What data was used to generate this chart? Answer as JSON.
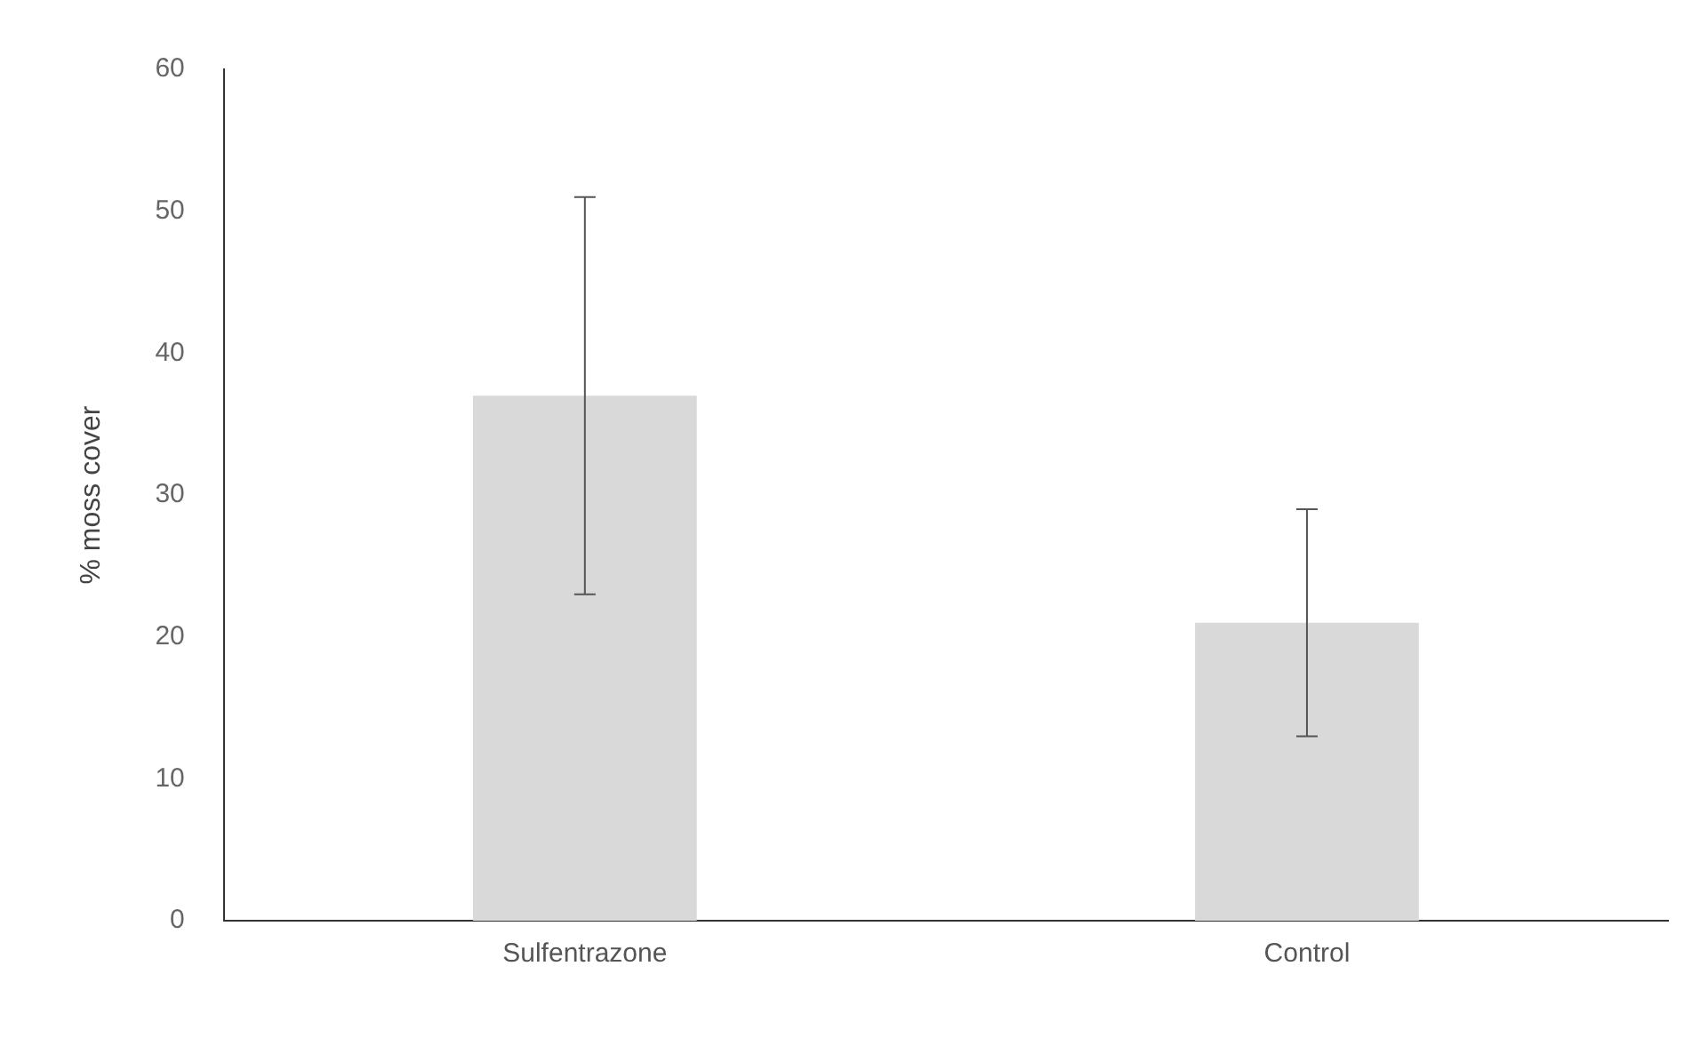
{
  "chart_data": {
    "type": "bar",
    "ylabel": "% moss cover",
    "categories": [
      "Sulfentrazone",
      "Control"
    ],
    "values": [
      37,
      21
    ],
    "errors": [
      14,
      8
    ],
    "color": "#d9d9d9",
    "ylim": [
      0,
      60
    ],
    "yticks": [
      0,
      10,
      20,
      30,
      40,
      50,
      60
    ],
    "grid": false,
    "legend": false
  }
}
